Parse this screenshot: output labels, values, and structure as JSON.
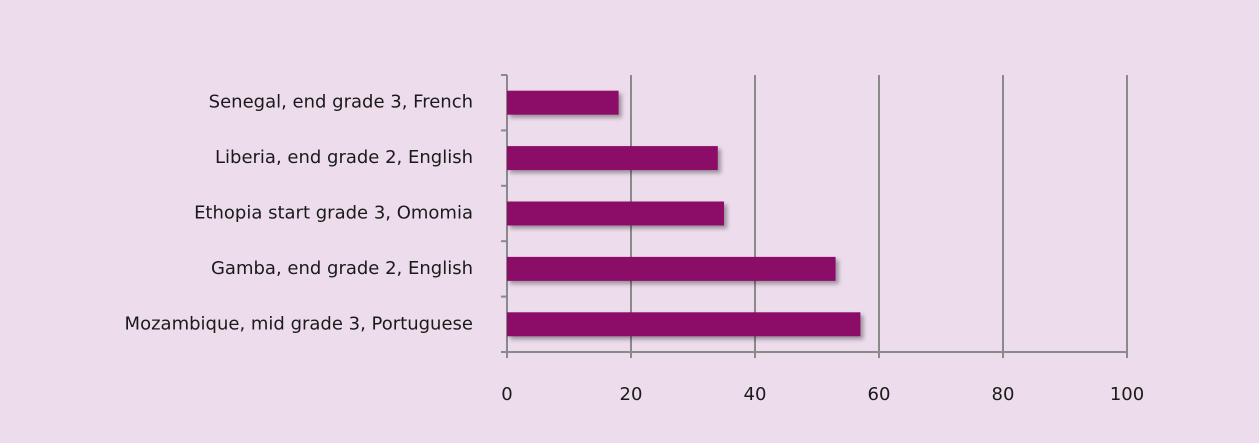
{
  "chart_data": {
    "type": "hbar",
    "categories": [
      "Senegal, end grade 3, French",
      "Liberia, end grade 2, English",
      "Ethopia start grade 3, Omomia",
      "Gamba, end grade 2, English",
      "Mozambique, mid grade 3, Portuguese"
    ],
    "values": [
      18,
      34,
      35,
      53,
      57
    ],
    "color": "#8b1068",
    "xlim": [
      0,
      100
    ],
    "xticks": [
      0,
      20,
      40,
      60,
      80,
      100
    ],
    "grid": true
  }
}
